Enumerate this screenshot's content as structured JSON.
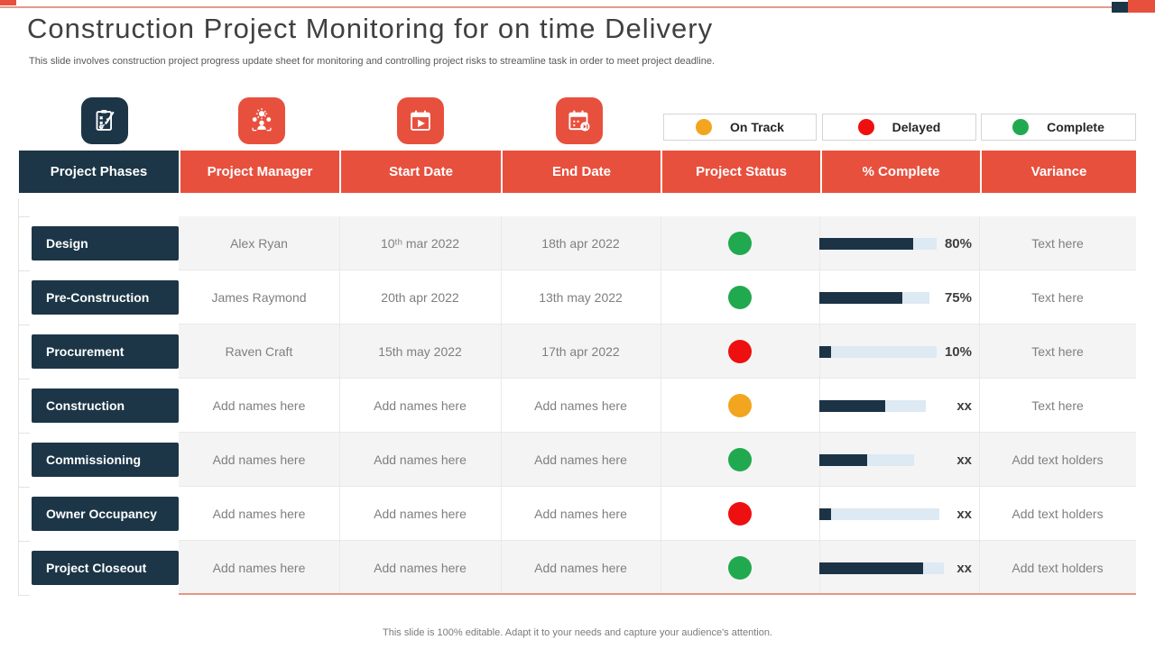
{
  "page": {
    "title": "Construction Project Monitoring for on time Delivery",
    "subtitle": "This slide involves construction project progress update sheet for monitoring and controlling project risks to streamline task in order to meet project deadline.",
    "footer": "This slide is 100% editable. Adapt it to your needs and capture your audience's attention."
  },
  "colors": {
    "accent_red": "#e8503e",
    "navy": "#1c3647",
    "on_track": "#f2a51f",
    "delayed": "#ee1010",
    "complete": "#21a94f",
    "bar_track": "#dde9f3",
    "bar_fill": "#1c3346"
  },
  "icons": [
    {
      "name": "strategy-plan-icon",
      "tile": "navy"
    },
    {
      "name": "manager-gears-icon",
      "tile": "red"
    },
    {
      "name": "calendar-start-icon",
      "tile": "red"
    },
    {
      "name": "calendar-end-icon",
      "tile": "red"
    }
  ],
  "legend": [
    {
      "label": "On Track",
      "color": "#f2a51f"
    },
    {
      "label": "Delayed",
      "color": "#ee1010"
    },
    {
      "label": "Complete",
      "color": "#21a94f"
    }
  ],
  "table": {
    "headers": [
      "Project Phases",
      "Project Manager",
      "Start Date",
      "End Date",
      "Project Status",
      "% Complete",
      "Variance"
    ],
    "rows": [
      {
        "phase": "Design",
        "manager": "Alex Ryan",
        "start": "10ᵗʰ mar 2022",
        "end": "18th apr 2022",
        "status": "complete",
        "percent_label": "80%",
        "bar": {
          "track": 130,
          "fill": 80
        },
        "variance": "Text here"
      },
      {
        "phase": "Pre-Construction",
        "manager": "James Raymond",
        "start": "20th apr 2022",
        "end": "13th may 2022",
        "status": "complete",
        "percent_label": "75%",
        "bar": {
          "track": 122,
          "fill": 75
        },
        "variance": "Text here"
      },
      {
        "phase": "Procurement",
        "manager": "Raven Craft",
        "start": "15th may 2022",
        "end": "17th apr 2022",
        "status": "delayed",
        "percent_label": "10%",
        "bar": {
          "track": 130,
          "fill": 10
        },
        "variance": "Text here"
      },
      {
        "phase": "Construction",
        "manager": "Add names here",
        "start": "Add names here",
        "end": "Add names here",
        "status": "on_track",
        "percent_label": "xx",
        "bar": {
          "track": 118,
          "fill": 62
        },
        "variance": "Text here"
      },
      {
        "phase": "Commissioning",
        "manager": "Add names here",
        "start": "Add names here",
        "end": "Add names here",
        "status": "complete",
        "percent_label": "xx",
        "bar": {
          "track": 105,
          "fill": 50
        },
        "variance": "Add text holders"
      },
      {
        "phase": "Owner Occupancy",
        "manager": "Add names here",
        "start": "Add names here",
        "end": "Add names here",
        "status": "delayed",
        "percent_label": "xx",
        "bar": {
          "track": 133,
          "fill": 10
        },
        "variance": "Add text holders"
      },
      {
        "phase": "Project Closeout",
        "manager": "Add names here",
        "start": "Add names here",
        "end": "Add names here",
        "status": "complete",
        "percent_label": "xx",
        "bar": {
          "track": 138,
          "fill": 83
        },
        "variance": "Add text holders"
      }
    ]
  }
}
